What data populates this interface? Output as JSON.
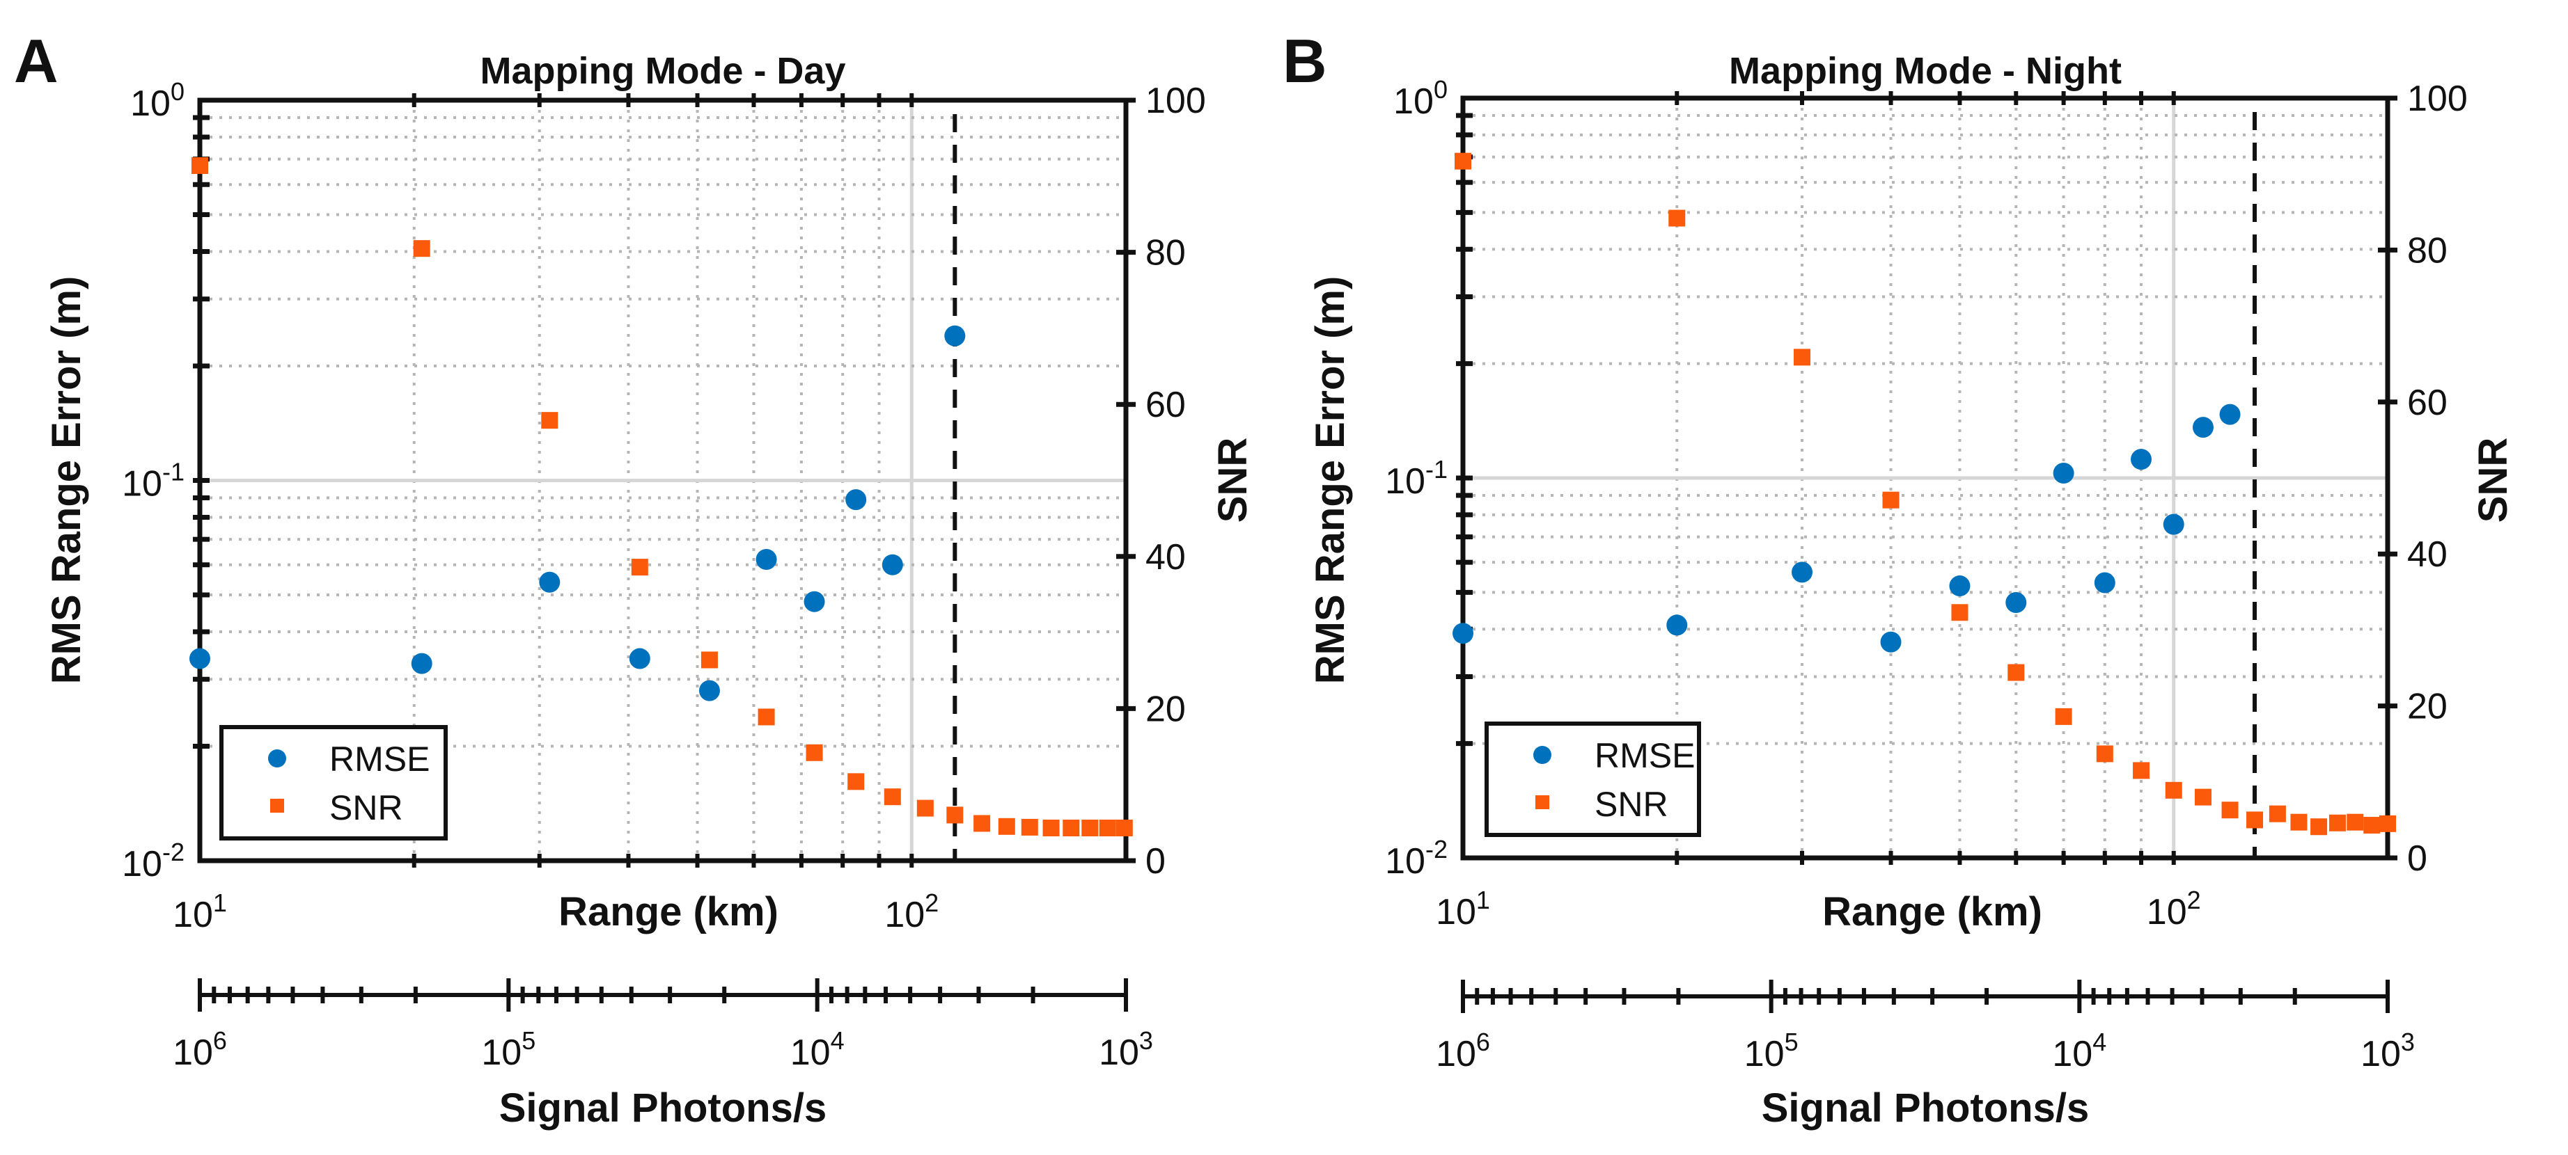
{
  "colors": {
    "rmse": "#0072BD",
    "snr": "#FA5A0A",
    "axis": "#111111",
    "grid": "#B5B5B5",
    "dashed": "#111111"
  },
  "chart_data": [
    {
      "type": "scatter",
      "panel_letter": "A",
      "title": "Mapping Mode - Day",
      "xlabel": "Range (km)",
      "ylabel": "RMS Range Error (m)",
      "y2label": "SNR",
      "x2label": "Signal Photons/s",
      "xscale": "log",
      "xlim": [
        10,
        200
      ],
      "yscale": "log",
      "ylim": [
        0.01,
        1
      ],
      "y2lim": [
        0,
        100
      ],
      "y2ticks": [
        0,
        20,
        40,
        60,
        80,
        100
      ],
      "x2scale": "log-reversed",
      "x2lim": [
        1000000,
        1000
      ],
      "x2ticks": [
        {
          "base": "10",
          "exp": "6"
        },
        {
          "base": "10",
          "exp": "5"
        },
        {
          "base": "10",
          "exp": "4"
        },
        {
          "base": "10",
          "exp": "3"
        }
      ],
      "xticks": [
        {
          "base": "10",
          "exp": "1"
        },
        {
          "base": "10",
          "exp": "2"
        }
      ],
      "yticks": [
        {
          "base": "10",
          "exp": "0"
        },
        {
          "base": "10",
          "exp": "-1"
        },
        {
          "base": "10",
          "exp": "-2"
        }
      ],
      "grid": true,
      "legend": {
        "placement": "bottom-left",
        "entries": [
          "RMSE",
          "SNR"
        ]
      },
      "dashed_line_x": 115,
      "series": [
        {
          "name": "RMSE",
          "axis": "left",
          "marker": "circle",
          "x": [
            10,
            20.5,
            31,
            41.5,
            52,
            62.5,
            73,
            83.5,
            94,
            115
          ],
          "y": [
            0.034,
            0.033,
            0.054,
            0.034,
            0.028,
            0.062,
            0.048,
            0.089,
            0.06,
            0.24
          ]
        },
        {
          "name": "SNR",
          "axis": "right",
          "marker": "square",
          "x": [
            10,
            20.5,
            31,
            41.5,
            52,
            62.5,
            73,
            83.5,
            94,
            104.5,
            115,
            125.5,
            136,
            146.5,
            157,
            167.5,
            178,
            188.5,
            199
          ],
          "y": [
            91.4,
            80.5,
            57.9,
            38.6,
            26.4,
            18.9,
            14.2,
            10.4,
            8.4,
            6.9,
            6.0,
            4.9,
            4.5,
            4.4,
            4.3,
            4.3,
            4.3,
            4.3,
            4.3
          ]
        }
      ]
    },
    {
      "type": "scatter",
      "panel_letter": "B",
      "title": "Mapping Mode - Night",
      "xlabel": "Range (km)",
      "ylabel": "RMS Range Error (m)",
      "y2label": "SNR",
      "x2label": "Signal Photons/s",
      "xscale": "log",
      "xlim": [
        10,
        200
      ],
      "yscale": "log",
      "ylim": [
        0.01,
        1
      ],
      "y2lim": [
        0,
        100
      ],
      "y2ticks": [
        0,
        20,
        40,
        60,
        80,
        100
      ],
      "x2scale": "log-reversed",
      "x2lim": [
        1000000,
        1000
      ],
      "x2ticks": [
        {
          "base": "10",
          "exp": "6"
        },
        {
          "base": "10",
          "exp": "5"
        },
        {
          "base": "10",
          "exp": "4"
        },
        {
          "base": "10",
          "exp": "3"
        }
      ],
      "xticks": [
        {
          "base": "10",
          "exp": "1"
        },
        {
          "base": "10",
          "exp": "2"
        }
      ],
      "yticks": [
        {
          "base": "10",
          "exp": "0"
        },
        {
          "base": "10",
          "exp": "-1"
        },
        {
          "base": "10",
          "exp": "-2"
        }
      ],
      "grid": true,
      "legend": {
        "placement": "bottom-left",
        "entries": [
          "RMSE",
          "SNR"
        ]
      },
      "dashed_line_x": 130,
      "series": [
        {
          "name": "RMSE",
          "axis": "left",
          "marker": "circle",
          "x": [
            10,
            20,
            30,
            40,
            50,
            60,
            70,
            80,
            90,
            100,
            110,
            120
          ],
          "y": [
            0.039,
            0.041,
            0.0565,
            0.037,
            0.052,
            0.047,
            0.103,
            0.053,
            0.112,
            0.0755,
            0.136,
            0.147
          ]
        },
        {
          "name": "SNR",
          "axis": "right",
          "marker": "square",
          "x": [
            10,
            20,
            30,
            40,
            50,
            60,
            70,
            80,
            90,
            100,
            110,
            120,
            130,
            140,
            150,
            160,
            170,
            180,
            190,
            200
          ],
          "y": [
            91.7,
            84.2,
            65.9,
            47.1,
            32.3,
            24.4,
            18.6,
            13.7,
            11.5,
            8.9,
            8.0,
            6.3,
            5.0,
            5.8,
            4.7,
            4.1,
            4.6,
            4.7,
            4.3,
            4.5
          ]
        }
      ]
    }
  ]
}
